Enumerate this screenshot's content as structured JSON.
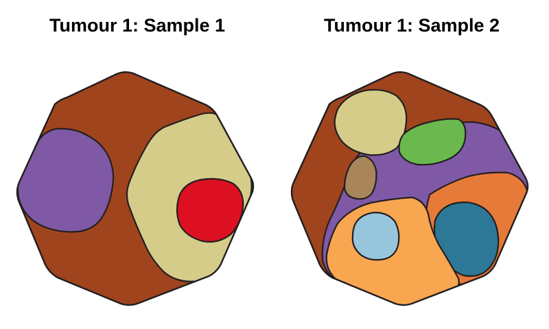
{
  "panels": [
    {
      "title": "Tumour 1: Sample 1",
      "clones": [
        {
          "name": "clone-background",
          "color": "#a0441e"
        },
        {
          "name": "clone-purple",
          "color": "#7f59a5"
        },
        {
          "name": "clone-khaki",
          "color": "#d5cc8a"
        },
        {
          "name": "clone-red",
          "color": "#dc1021"
        }
      ]
    },
    {
      "title": "Tumour 1: Sample 2",
      "clones": [
        {
          "name": "clone-background",
          "color": "#a0441e"
        },
        {
          "name": "clone-purple",
          "color": "#7f59a5"
        },
        {
          "name": "clone-khaki",
          "color": "#d5cc8a"
        },
        {
          "name": "clone-green",
          "color": "#6bb94e"
        },
        {
          "name": "clone-tan",
          "color": "#a8855a"
        },
        {
          "name": "clone-light-orange",
          "color": "#f9a650"
        },
        {
          "name": "clone-dark-orange",
          "color": "#e67a38"
        },
        {
          "name": "clone-light-blue",
          "color": "#97c5dc"
        },
        {
          "name": "clone-teal",
          "color": "#2e7897"
        }
      ]
    }
  ]
}
